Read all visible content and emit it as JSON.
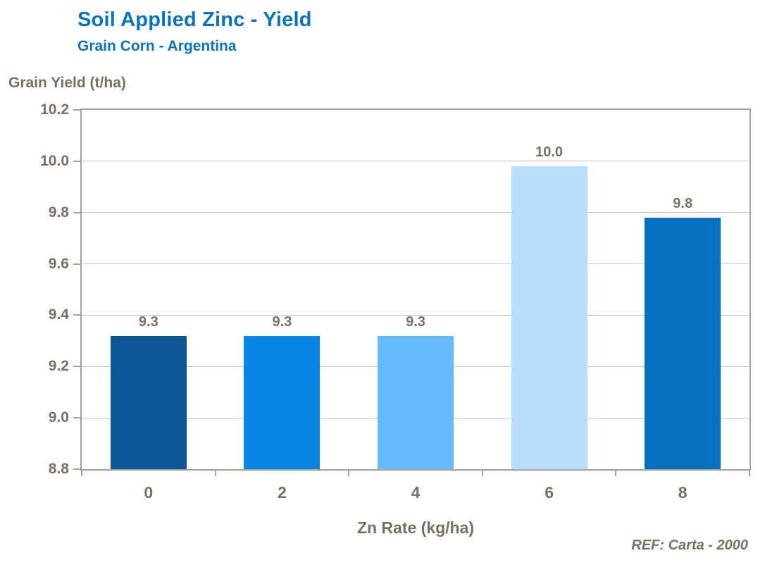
{
  "header": {
    "title": "Soil Applied Zinc - Yield",
    "subtitle": "Grain Corn - Argentina"
  },
  "chart_data": {
    "type": "bar",
    "title": "Soil Applied Zinc - Yield",
    "subtitle": "Grain Corn - Argentina",
    "categories": [
      "0",
      "2",
      "4",
      "6",
      "8"
    ],
    "values": [
      9.3,
      9.3,
      9.3,
      10.0,
      9.8
    ],
    "bar_labels": [
      "9.3",
      "9.3",
      "9.3",
      "10.0",
      "9.8"
    ],
    "plot_values": [
      9.32,
      9.32,
      9.32,
      9.98,
      9.78
    ],
    "xlabel": "Zn Rate (kg/ha)",
    "ylabel": "Grain Yield (t/ha)",
    "ylim": [
      8.8,
      10.2
    ],
    "yticks": [
      8.8,
      9.0,
      9.2,
      9.4,
      9.6,
      9.8,
      10.0,
      10.2
    ],
    "ytick_labels": [
      "8.8",
      "9.0",
      "9.2",
      "9.4",
      "9.6",
      "9.8",
      "10.0",
      "10.2"
    ],
    "grid": true,
    "legend": false,
    "bar_colors": [
      "#0b5796",
      "#0884e2",
      "#64bafb",
      "#b9defd",
      "#0570bd"
    ]
  },
  "colors": {
    "title_blue": "#0b72be",
    "axis_text": "#7b6f62",
    "plot_border": "#aba095",
    "gridline": "#ccc4b8",
    "background": "#ffffff"
  },
  "footer": {
    "reference": "REF: Carta - 2000"
  }
}
